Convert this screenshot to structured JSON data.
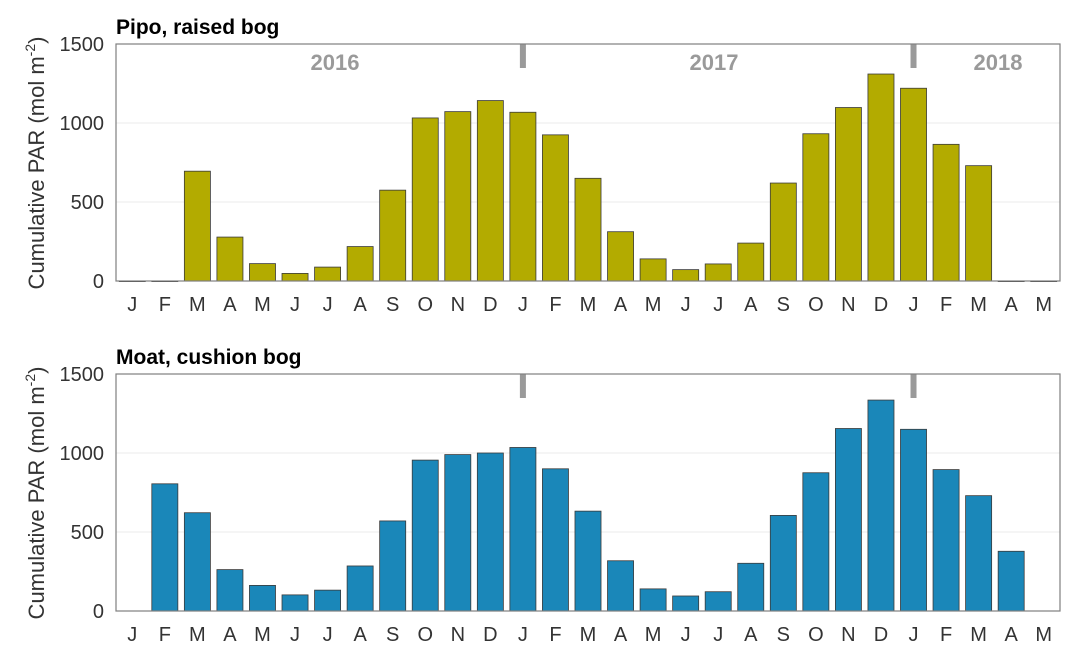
{
  "chart_data": [
    {
      "type": "bar",
      "title": "Pipo, raised bog",
      "ylabel": "Cumulative PAR (mol m",
      "ylabel_sup": "-2",
      "ylabel_end": ")",
      "ylim": [
        0,
        1500
      ],
      "yticks": [
        "0",
        "500",
        "1000",
        "1500"
      ],
      "categories": [
        "J",
        "F",
        "M",
        "A",
        "M",
        "J",
        "J",
        "A",
        "S",
        "O",
        "N",
        "D",
        "J",
        "F",
        "M",
        "A",
        "M",
        "J",
        "J",
        "A",
        "S",
        "O",
        "N",
        "D",
        "J",
        "F",
        "M",
        "A",
        "M"
      ],
      "values": [
        0,
        0,
        695,
        278,
        110,
        48,
        88,
        218,
        575,
        1032,
        1072,
        1142,
        1068,
        925,
        650,
        312,
        140,
        72,
        108,
        240,
        620,
        932,
        1098,
        1310,
        1220,
        865,
        730,
        0,
        0
      ],
      "bar_color": "#b3ab00",
      "year_labels": [
        "2016",
        "2017",
        "2018"
      ],
      "year_dividers_after_index": [
        11,
        23
      ],
      "grid": true
    },
    {
      "type": "bar",
      "title": "Moat, cushion bog",
      "ylabel": "Cumulative PAR (mol m",
      "ylabel_sup": "-2",
      "ylabel_end": ")",
      "ylim": [
        0,
        1500
      ],
      "yticks": [
        "0",
        "500",
        "1000",
        "1500"
      ],
      "categories": [
        "J",
        "F",
        "M",
        "A",
        "M",
        "J",
        "J",
        "A",
        "S",
        "O",
        "N",
        "D",
        "J",
        "F",
        "M",
        "A",
        "M",
        "J",
        "J",
        "A",
        "S",
        "O",
        "N",
        "D",
        "J",
        "F",
        "M",
        "A",
        "M"
      ],
      "values": [
        null,
        805,
        622,
        262,
        162,
        102,
        132,
        285,
        570,
        955,
        990,
        1000,
        1035,
        900,
        632,
        318,
        140,
        95,
        122,
        302,
        605,
        875,
        1155,
        1335,
        1150,
        895,
        730,
        378,
        null
      ],
      "bar_color": "#1a87b9",
      "year_dividers_after_index": [
        11,
        23
      ],
      "grid": true
    }
  ]
}
